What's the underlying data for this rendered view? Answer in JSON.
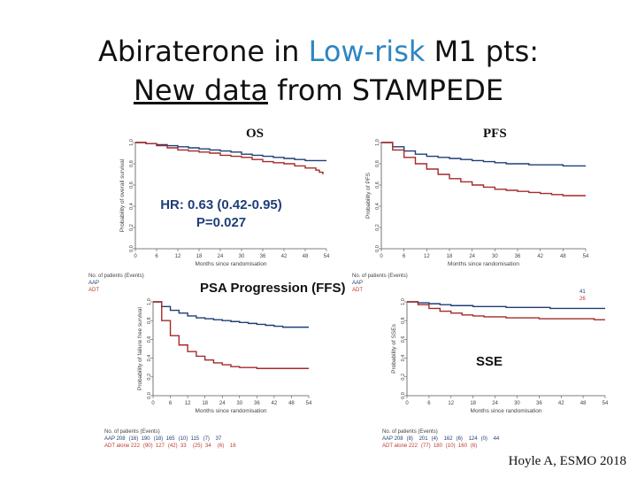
{
  "title": {
    "line1_a": "Abiraterone in ",
    "line1_hl": "Low-risk",
    "line1_b": " M1 pts:",
    "line2_ul": "New data",
    "line2_b": " from STAMPEDE"
  },
  "labels": {
    "os": "OS",
    "pfs": "PFS",
    "hr_line1": "HR: 0.63 (0.42-0.95)",
    "hr_line2": "P=0.027",
    "ffs": "PSA Progression (FFS)",
    "sse": "SSE",
    "credit": "Hoyle A, ESMO 2018"
  },
  "colors": {
    "aap": "#1f3f77",
    "adt": "#a52a2a",
    "hr_text": "#1f3f77",
    "highlight": "#2e86c1"
  },
  "risk_tables": {
    "os": {
      "header": "No. of patients (Events)",
      "rows": [
        "AAP",
        "ADT"
      ]
    },
    "pfs": {
      "header": "No. of patients (Events)",
      "rows": [
        "AAP",
        "ADT"
      ],
      "aap_last": "41",
      "adt_last": "26"
    },
    "ffs": {
      "header": "No. of patients (Events)",
      "rows": [
        {
          "arm": "AAP",
          "values": [
            "208",
            "(16)",
            "190",
            "(18)",
            "165",
            "(10)",
            "115",
            "(7)",
            "37"
          ]
        },
        {
          "arm": "ADT alone",
          "values": [
            "222",
            "(90)",
            "127",
            "(42)",
            "33",
            "(25)",
            "34",
            "(6)",
            "16"
          ]
        }
      ]
    },
    "sse": {
      "header": "No. of patients (Events)",
      "rows": [
        {
          "arm": "AAP",
          "values": [
            "208",
            "(8)",
            "201",
            "(4)",
            "162",
            "(6)",
            "124",
            "(0)",
            "44"
          ]
        },
        {
          "arm": "ADT alone",
          "values": [
            "222",
            "(77)",
            "180",
            "(10)",
            "160",
            "(6)",
            "",
            "",
            ""
          ]
        }
      ]
    }
  },
  "chart_data": [
    {
      "type": "line",
      "panel": "os",
      "title": "OS",
      "xlabel": "Months since randomisation",
      "ylabel": "Probability of overall survival",
      "xlim": [
        0,
        54
      ],
      "ylim": [
        0,
        1
      ],
      "xticks": [
        0,
        6,
        12,
        18,
        24,
        30,
        36,
        42,
        48,
        54
      ],
      "yticks": [
        0,
        0.2,
        0.4,
        0.6,
        0.8,
        1.0
      ],
      "series": [
        {
          "name": "AAP",
          "color": "#1f3f77",
          "x": [
            0,
            3,
            6,
            9,
            12,
            15,
            18,
            21,
            24,
            27,
            30,
            33,
            36,
            39,
            42,
            45,
            48,
            51,
            54
          ],
          "y": [
            1.0,
            0.99,
            0.98,
            0.97,
            0.96,
            0.95,
            0.94,
            0.93,
            0.92,
            0.91,
            0.89,
            0.88,
            0.87,
            0.86,
            0.85,
            0.84,
            0.83,
            0.83,
            0.83
          ]
        },
        {
          "name": "ADT",
          "color": "#a52a2a",
          "x": [
            0,
            3,
            6,
            9,
            12,
            15,
            18,
            21,
            24,
            27,
            30,
            33,
            36,
            39,
            42,
            45,
            48,
            51,
            52,
            53
          ],
          "y": [
            1.0,
            0.99,
            0.97,
            0.95,
            0.93,
            0.92,
            0.91,
            0.9,
            0.88,
            0.87,
            0.86,
            0.84,
            0.82,
            0.81,
            0.8,
            0.78,
            0.76,
            0.74,
            0.72,
            0.7
          ]
        }
      ]
    },
    {
      "type": "line",
      "panel": "pfs",
      "title": "PFS",
      "xlabel": "Months since randomisation",
      "ylabel": "Probability of PFS",
      "xlim": [
        0,
        54
      ],
      "ylim": [
        0,
        1
      ],
      "xticks": [
        0,
        6,
        12,
        18,
        24,
        30,
        36,
        42,
        48,
        54
      ],
      "yticks": [
        0,
        0.2,
        0.4,
        0.6,
        0.8,
        1.0
      ],
      "series": [
        {
          "name": "AAP",
          "color": "#1f3f77",
          "x": [
            0,
            3,
            6,
            9,
            12,
            15,
            18,
            21,
            24,
            27,
            30,
            33,
            36,
            39,
            42,
            45,
            48,
            51,
            54
          ],
          "y": [
            1.0,
            0.96,
            0.92,
            0.89,
            0.87,
            0.86,
            0.85,
            0.84,
            0.83,
            0.82,
            0.81,
            0.8,
            0.8,
            0.79,
            0.79,
            0.79,
            0.78,
            0.78,
            0.78
          ]
        },
        {
          "name": "ADT",
          "color": "#a52a2a",
          "x": [
            0,
            3,
            6,
            9,
            12,
            15,
            18,
            21,
            24,
            27,
            30,
            33,
            36,
            39,
            42,
            45,
            48,
            51,
            54
          ],
          "y": [
            1.0,
            0.93,
            0.86,
            0.8,
            0.75,
            0.7,
            0.66,
            0.63,
            0.6,
            0.58,
            0.56,
            0.55,
            0.54,
            0.53,
            0.52,
            0.51,
            0.5,
            0.5,
            0.5
          ]
        }
      ]
    },
    {
      "type": "line",
      "panel": "ffs",
      "title": "PSA Progression (FFS)",
      "xlabel": "Months since randomisation",
      "ylabel": "Probability of failure free survival",
      "xlim": [
        0,
        54
      ],
      "ylim": [
        0,
        1
      ],
      "xticks": [
        0,
        6,
        12,
        18,
        24,
        30,
        36,
        42,
        48,
        54
      ],
      "yticks": [
        0,
        0.2,
        0.4,
        0.6,
        0.8,
        1.0
      ],
      "series": [
        {
          "name": "AAP",
          "color": "#1f3f77",
          "x": [
            0,
            3,
            6,
            9,
            12,
            15,
            18,
            21,
            24,
            27,
            30,
            33,
            36,
            39,
            42,
            45,
            48,
            51,
            54
          ],
          "y": [
            1.0,
            0.95,
            0.91,
            0.88,
            0.85,
            0.83,
            0.82,
            0.81,
            0.8,
            0.79,
            0.78,
            0.77,
            0.76,
            0.75,
            0.74,
            0.73,
            0.73,
            0.73,
            0.73
          ]
        },
        {
          "name": "ADT alone",
          "color": "#a52a2a",
          "x": [
            0,
            3,
            6,
            9,
            12,
            15,
            18,
            21,
            24,
            27,
            30,
            33,
            36,
            39,
            42,
            45,
            48,
            51,
            54
          ],
          "y": [
            1.0,
            0.8,
            0.64,
            0.54,
            0.47,
            0.42,
            0.38,
            0.35,
            0.33,
            0.31,
            0.3,
            0.3,
            0.29,
            0.29,
            0.29,
            0.29,
            0.29,
            0.29,
            0.29
          ]
        }
      ]
    },
    {
      "type": "line",
      "panel": "sse",
      "title": "SSE",
      "xlabel": "Months since randomisation",
      "ylabel": "Probability of SSEs",
      "xlim": [
        0,
        54
      ],
      "ylim": [
        0,
        1
      ],
      "xticks": [
        0,
        6,
        12,
        18,
        24,
        30,
        36,
        42,
        48,
        54
      ],
      "yticks": [
        0,
        0.2,
        0.4,
        0.6,
        0.8,
        1.0
      ],
      "series": [
        {
          "name": "AAP",
          "color": "#1f3f77",
          "x": [
            0,
            3,
            6,
            9,
            12,
            15,
            18,
            21,
            24,
            27,
            30,
            33,
            36,
            39,
            42,
            45,
            48,
            51,
            54
          ],
          "y": [
            1.0,
            0.99,
            0.98,
            0.97,
            0.96,
            0.96,
            0.95,
            0.95,
            0.95,
            0.94,
            0.94,
            0.94,
            0.94,
            0.93,
            0.93,
            0.93,
            0.93,
            0.93,
            0.93
          ]
        },
        {
          "name": "ADT alone",
          "color": "#a52a2a",
          "x": [
            0,
            3,
            6,
            9,
            12,
            15,
            18,
            21,
            24,
            27,
            30,
            33,
            36,
            39,
            42,
            45,
            48,
            51,
            54
          ],
          "y": [
            1.0,
            0.97,
            0.93,
            0.9,
            0.88,
            0.86,
            0.85,
            0.84,
            0.84,
            0.83,
            0.83,
            0.83,
            0.82,
            0.82,
            0.82,
            0.82,
            0.82,
            0.81,
            0.81
          ]
        }
      ]
    }
  ]
}
